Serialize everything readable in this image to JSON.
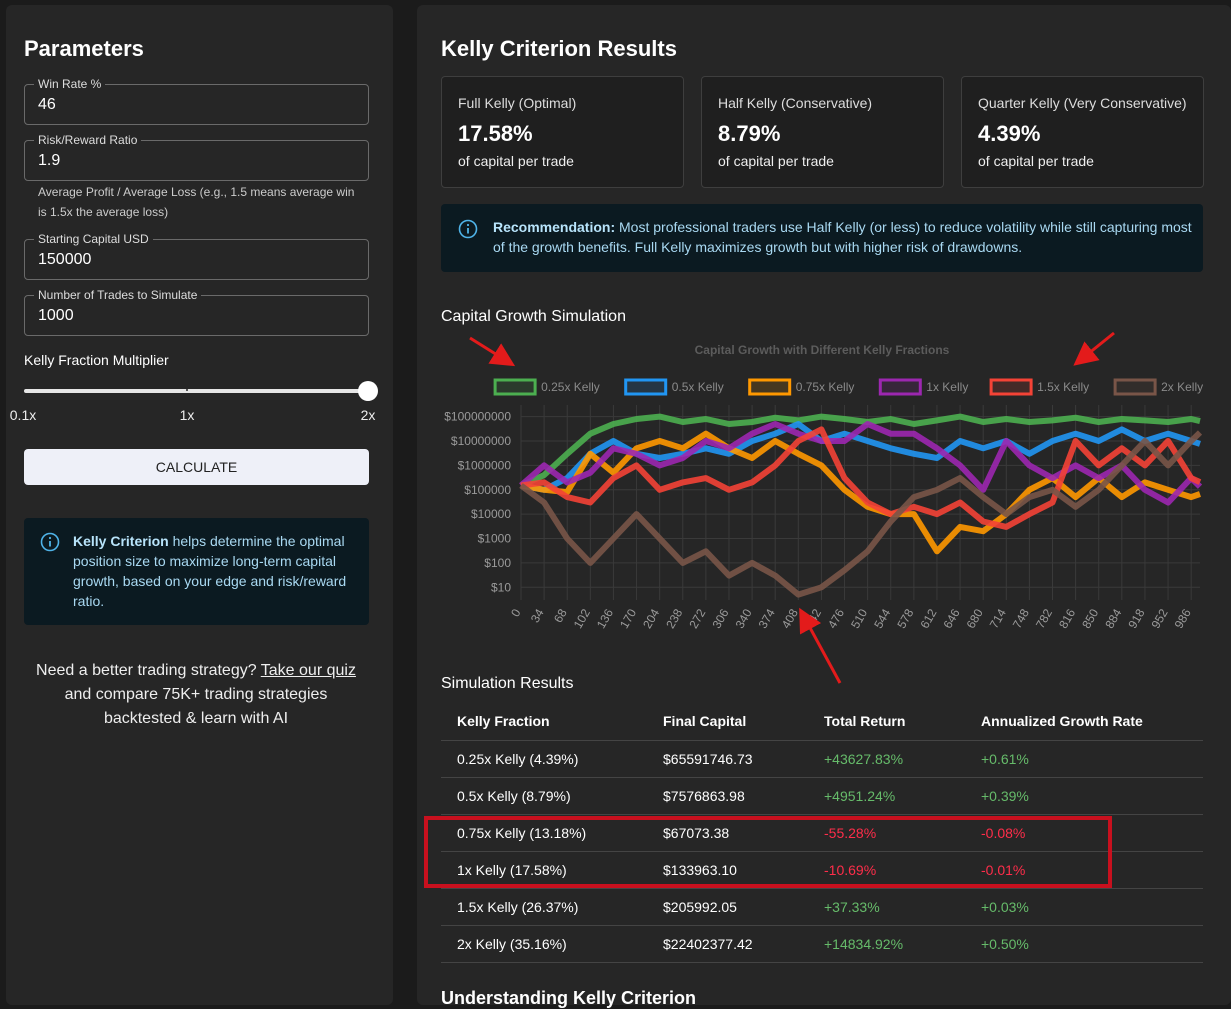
{
  "parameters": {
    "title": "Parameters",
    "fields": [
      {
        "label": "Win Rate %",
        "value": 46
      },
      {
        "label": "Risk/Reward Ratio",
        "value": 1.9
      },
      {
        "label": "Starting Capital USD",
        "value": 150000
      },
      {
        "label": "Number of Trades to Simulate",
        "value": 1000
      }
    ],
    "helper": "Average Profit / Average Loss (e.g., 1.5 means average win is 1.5x the average loss)",
    "multiplier": {
      "label": "Kelly Fraction Multiplier",
      "ticks": [
        "0.1x",
        "1x",
        "2x"
      ]
    },
    "button": "CALCULATE",
    "info": {
      "term": "Kelly Criterion",
      "text": "helps determine the optimal position size to maximize long-term capital growth, based on your edge and risk/reward ratio."
    },
    "promo": {
      "before": "Need a better trading strategy?",
      "link": "Take our quiz",
      "after": "and compare 75K+ trading strategies backtested & learn with AI"
    }
  },
  "results": {
    "title": "Kelly Criterion Results",
    "cards": [
      {
        "label": "Full Kelly (Optimal)",
        "value": "17.58%",
        "note": "of capital per trade"
      },
      {
        "label": "Half Kelly (Conservative)",
        "value": "8.79%",
        "note": "of capital per trade"
      },
      {
        "label": "Quarter Kelly (Very Conservative)",
        "value": "4.39%",
        "note": "of capital per trade"
      }
    ],
    "recommendation": {
      "term": "Recommendation:",
      "text": "Most professional traders use Half Kelly (or less) to reduce volatility while still capturing most of the growth benefits. Full Kelly maximizes growth but with higher risk of drawdowns."
    },
    "chart_heading": "Capital Growth Simulation",
    "table": {
      "title": "Simulation Results",
      "headers": [
        "Kelly Fraction",
        "Final Capital",
        "Total Return",
        "Annualized Growth Rate"
      ],
      "rows": [
        [
          "0.25x Kelly (4.39%)",
          "$65591746.73",
          "+43627.83%",
          "+0.61%"
        ],
        [
          "0.5x Kelly (8.79%)",
          "$7576863.98",
          "+4951.24%",
          "+0.39%"
        ],
        [
          "0.75x Kelly (13.18%)",
          "$67073.38",
          "-55.28%",
          "-0.08%"
        ],
        [
          "1x Kelly (17.58%)",
          "$133963.10",
          "-10.69%",
          "-0.01%"
        ],
        [
          "1.5x Kelly (26.37%)",
          "$205992.05",
          "+37.33%",
          "+0.03%"
        ],
        [
          "2x Kelly (35.16%)",
          "$22402377.42",
          "+14834.92%",
          "+0.50%"
        ]
      ]
    },
    "next_heading": "Understanding Kelly Criterion"
  },
  "chart_data": {
    "type": "line",
    "title": "Capital Growth with Different Kelly Fractions",
    "log_scale": true,
    "grid": true,
    "legend": "top",
    "x": [
      0,
      34,
      68,
      102,
      136,
      170,
      204,
      238,
      272,
      306,
      340,
      374,
      408,
      442,
      476,
      510,
      544,
      578,
      612,
      646,
      680,
      714,
      748,
      782,
      816,
      850,
      884,
      918,
      952,
      986,
      999
    ],
    "xlim": [
      0,
      999
    ],
    "xticks": [
      0,
      34,
      68,
      102,
      136,
      170,
      204,
      238,
      272,
      306,
      340,
      374,
      408,
      442,
      476,
      510,
      544,
      578,
      612,
      646,
      680,
      714,
      748,
      782,
      816,
      850,
      884,
      918,
      952,
      986
    ],
    "ylim": [
      3,
      300000000
    ],
    "yticks": [
      {
        "value": 10,
        "label": "$10"
      },
      {
        "value": 100,
        "label": "$100"
      },
      {
        "value": 1000,
        "label": "$1000"
      },
      {
        "value": 10000,
        "label": "$10000"
      },
      {
        "value": 100000,
        "label": "$100000"
      },
      {
        "value": 1000000,
        "label": "$1000000"
      },
      {
        "value": 10000000,
        "label": "$10000000"
      },
      {
        "value": 100000000,
        "label": "$100000000"
      }
    ],
    "series": [
      {
        "name": "0.25x Kelly",
        "color": "#4caf50",
        "values": [
          150000,
          400000,
          3000000,
          20000000,
          50000000,
          80000000,
          100000000,
          60000000,
          80000000,
          50000000,
          60000000,
          90000000,
          70000000,
          100000000,
          80000000,
          60000000,
          80000000,
          50000000,
          70000000,
          100000000,
          60000000,
          80000000,
          60000000,
          70000000,
          90000000,
          60000000,
          80000000,
          70000000,
          60000000,
          80000000,
          65591746.73
        ]
      },
      {
        "name": "0.5x Kelly",
        "color": "#2196f3",
        "values": [
          150000,
          100000,
          300000,
          3000000,
          10000000,
          3000000,
          2000000,
          3000000,
          5000000,
          3000000,
          10000000,
          20000000,
          50000000,
          10000000,
          20000000,
          10000000,
          5000000,
          3000000,
          2000000,
          10000000,
          5000000,
          10000000,
          3000000,
          10000000,
          20000000,
          10000000,
          30000000,
          10000000,
          20000000,
          10000000,
          7576863.98
        ]
      },
      {
        "name": "0.75x Kelly",
        "color": "#ff9800",
        "values": [
          150000,
          100000,
          80000,
          3000000,
          500000,
          5000000,
          10000000,
          5000000,
          20000000,
          5000000,
          2000000,
          10000000,
          3000000,
          1000000,
          100000,
          20000,
          10000,
          10000,
          300,
          3000,
          2000,
          10000,
          100000,
          300000,
          50000,
          300000,
          50000,
          200000,
          100000,
          50000,
          67073.38
        ]
      },
      {
        "name": "1x Kelly",
        "color": "#9c27b0",
        "values": [
          150000,
          1000000,
          200000,
          500000,
          5000000,
          3000000,
          1000000,
          2000000,
          10000000,
          5000000,
          20000000,
          50000000,
          20000000,
          10000000,
          10000000,
          50000000,
          20000000,
          20000000,
          5000000,
          1000000,
          100000,
          10000000,
          1000000,
          300000,
          1000000,
          300000,
          1000000,
          100000,
          30000,
          300000,
          133963.1
        ]
      },
      {
        "name": "1.5x Kelly",
        "color": "#f44336",
        "values": [
          150000,
          200000,
          50000,
          30000,
          300000,
          1000000,
          100000,
          200000,
          300000,
          100000,
          200000,
          1000000,
          10000000,
          30000000,
          300000,
          30000,
          10000,
          20000,
          10000,
          30000,
          5000,
          3000,
          10000,
          30000,
          10000000,
          1000000,
          5000000,
          1000000,
          10000000,
          300000,
          205992.05
        ]
      },
      {
        "name": "2x Kelly",
        "color": "#795548",
        "values": [
          150000,
          30000,
          1000,
          100,
          1000,
          10000,
          1000,
          100,
          300,
          30,
          100,
          30,
          5,
          10,
          50,
          300,
          5000,
          50000,
          100000,
          300000,
          50000,
          10000,
          50000,
          100000,
          20000,
          100000,
          1000000,
          10000000,
          1000000,
          10000000,
          22402377.42
        ]
      }
    ]
  }
}
